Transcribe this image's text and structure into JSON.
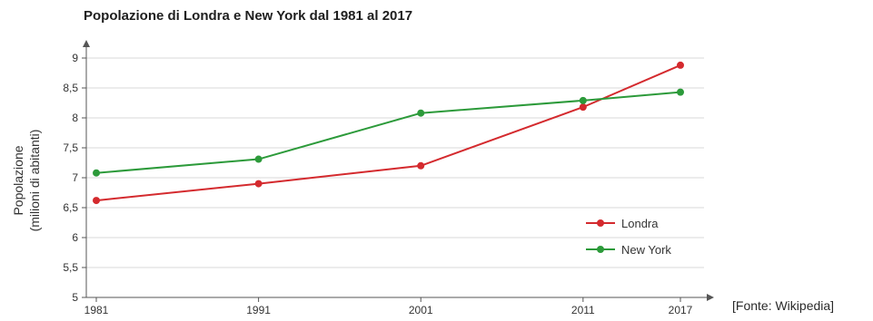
{
  "chart_data": {
    "type": "line",
    "title": "Popolazione di Londra e New York dal 1981 al 2017",
    "ylabel_line1": "Popolazione",
    "ylabel_line2": "(milioni di abitanti)",
    "xlabel": "",
    "x": [
      "1981",
      "1991",
      "2001",
      "2011",
      "2017"
    ],
    "x_values": [
      1981,
      1991,
      2001,
      2011,
      2017
    ],
    "yticks": [
      "5",
      "5,5",
      "6",
      "6,5",
      "7",
      "7,5",
      "8",
      "8,5",
      "9"
    ],
    "ylim": [
      5,
      9
    ],
    "grid": true,
    "legend_position": "bottom-right",
    "series": [
      {
        "name": "Londra",
        "color": "#d42a2e",
        "values": [
          6.62,
          6.9,
          7.2,
          8.18,
          8.88
        ]
      },
      {
        "name": "New York",
        "color": "#2c9a3a",
        "values": [
          7.08,
          7.31,
          8.08,
          8.29,
          8.43
        ]
      }
    ],
    "source": "[Fonte: Wikipedia]"
  }
}
